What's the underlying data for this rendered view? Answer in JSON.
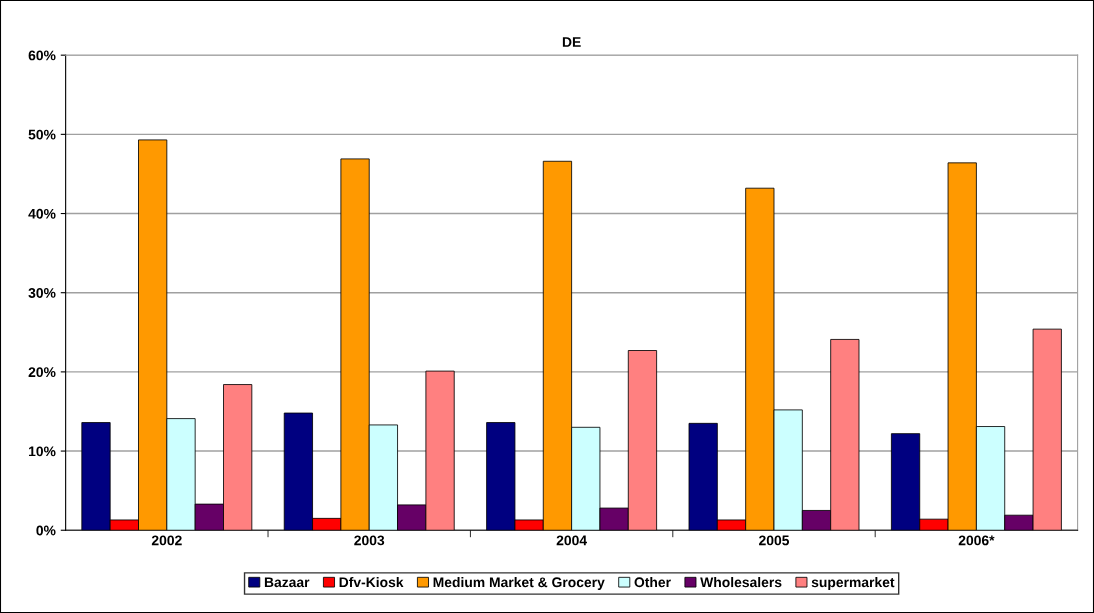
{
  "chart_data": {
    "type": "bar",
    "title": "DE",
    "categories": [
      "2002",
      "2003",
      "2004",
      "2005",
      "2006*"
    ],
    "series": [
      {
        "name": "Bazaar",
        "color": "#000080",
        "values": [
          13.6,
          14.8,
          13.6,
          13.5,
          12.2
        ]
      },
      {
        "name": "Dfv-Kiosk",
        "color": "#ff0000",
        "values": [
          1.3,
          1.5,
          1.3,
          1.3,
          1.4
        ]
      },
      {
        "name": "Medium Market & Grocery",
        "color": "#ff9900",
        "values": [
          49.3,
          46.9,
          46.6,
          43.2,
          46.4
        ]
      },
      {
        "name": "Other",
        "color": "#ccffff",
        "values": [
          14.1,
          13.3,
          13.0,
          15.2,
          13.1
        ]
      },
      {
        "name": "Wholesalers",
        "color": "#660066",
        "values": [
          3.3,
          3.2,
          2.8,
          2.5,
          1.9
        ]
      },
      {
        "name": "supermarket",
        "color": "#ff8080",
        "values": [
          18.4,
          20.1,
          22.7,
          24.1,
          25.4
        ]
      }
    ],
    "ylim": [
      0,
      60
    ],
    "yticks": [
      {
        "value": 0,
        "label": "0%"
      },
      {
        "value": 10,
        "label": "10%"
      },
      {
        "value": 20,
        "label": "20%"
      },
      {
        "value": 30,
        "label": "30%"
      },
      {
        "value": 40,
        "label": "40%"
      },
      {
        "value": 50,
        "label": "50%"
      },
      {
        "value": 60,
        "label": "60%"
      }
    ],
    "grid": "y",
    "legend": "bottom"
  }
}
